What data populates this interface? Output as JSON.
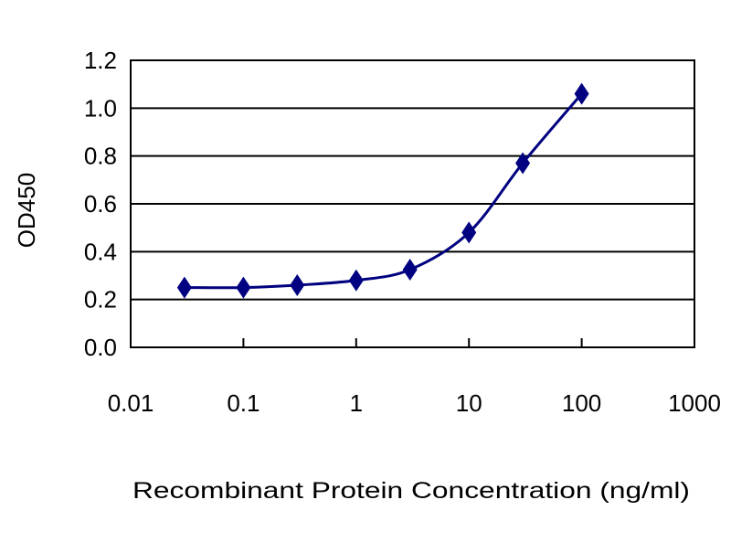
{
  "chart_data": {
    "type": "line",
    "title": "",
    "xlabel": "Recombinant Protein Concentration (ng/ml)",
    "ylabel": "OD450",
    "xscale": "log",
    "xlim": [
      0.01,
      1000
    ],
    "ylim": [
      0,
      1.2
    ],
    "x_ticks": [
      "0.01",
      "0.1",
      "1",
      "10",
      "100",
      "1000"
    ],
    "y_ticks": [
      "0.0",
      "0.2",
      "0.4",
      "0.6",
      "0.8",
      "1.0",
      "1.2"
    ],
    "grid": "horizontal",
    "legend": "none",
    "series": [
      {
        "color": "#000080",
        "marker": "diamond",
        "x": [
          0.03,
          0.1,
          0.3,
          1,
          3,
          10,
          30,
          100
        ],
        "y": [
          0.25,
          0.25,
          0.26,
          0.28,
          0.325,
          0.48,
          0.77,
          1.06
        ]
      }
    ]
  }
}
